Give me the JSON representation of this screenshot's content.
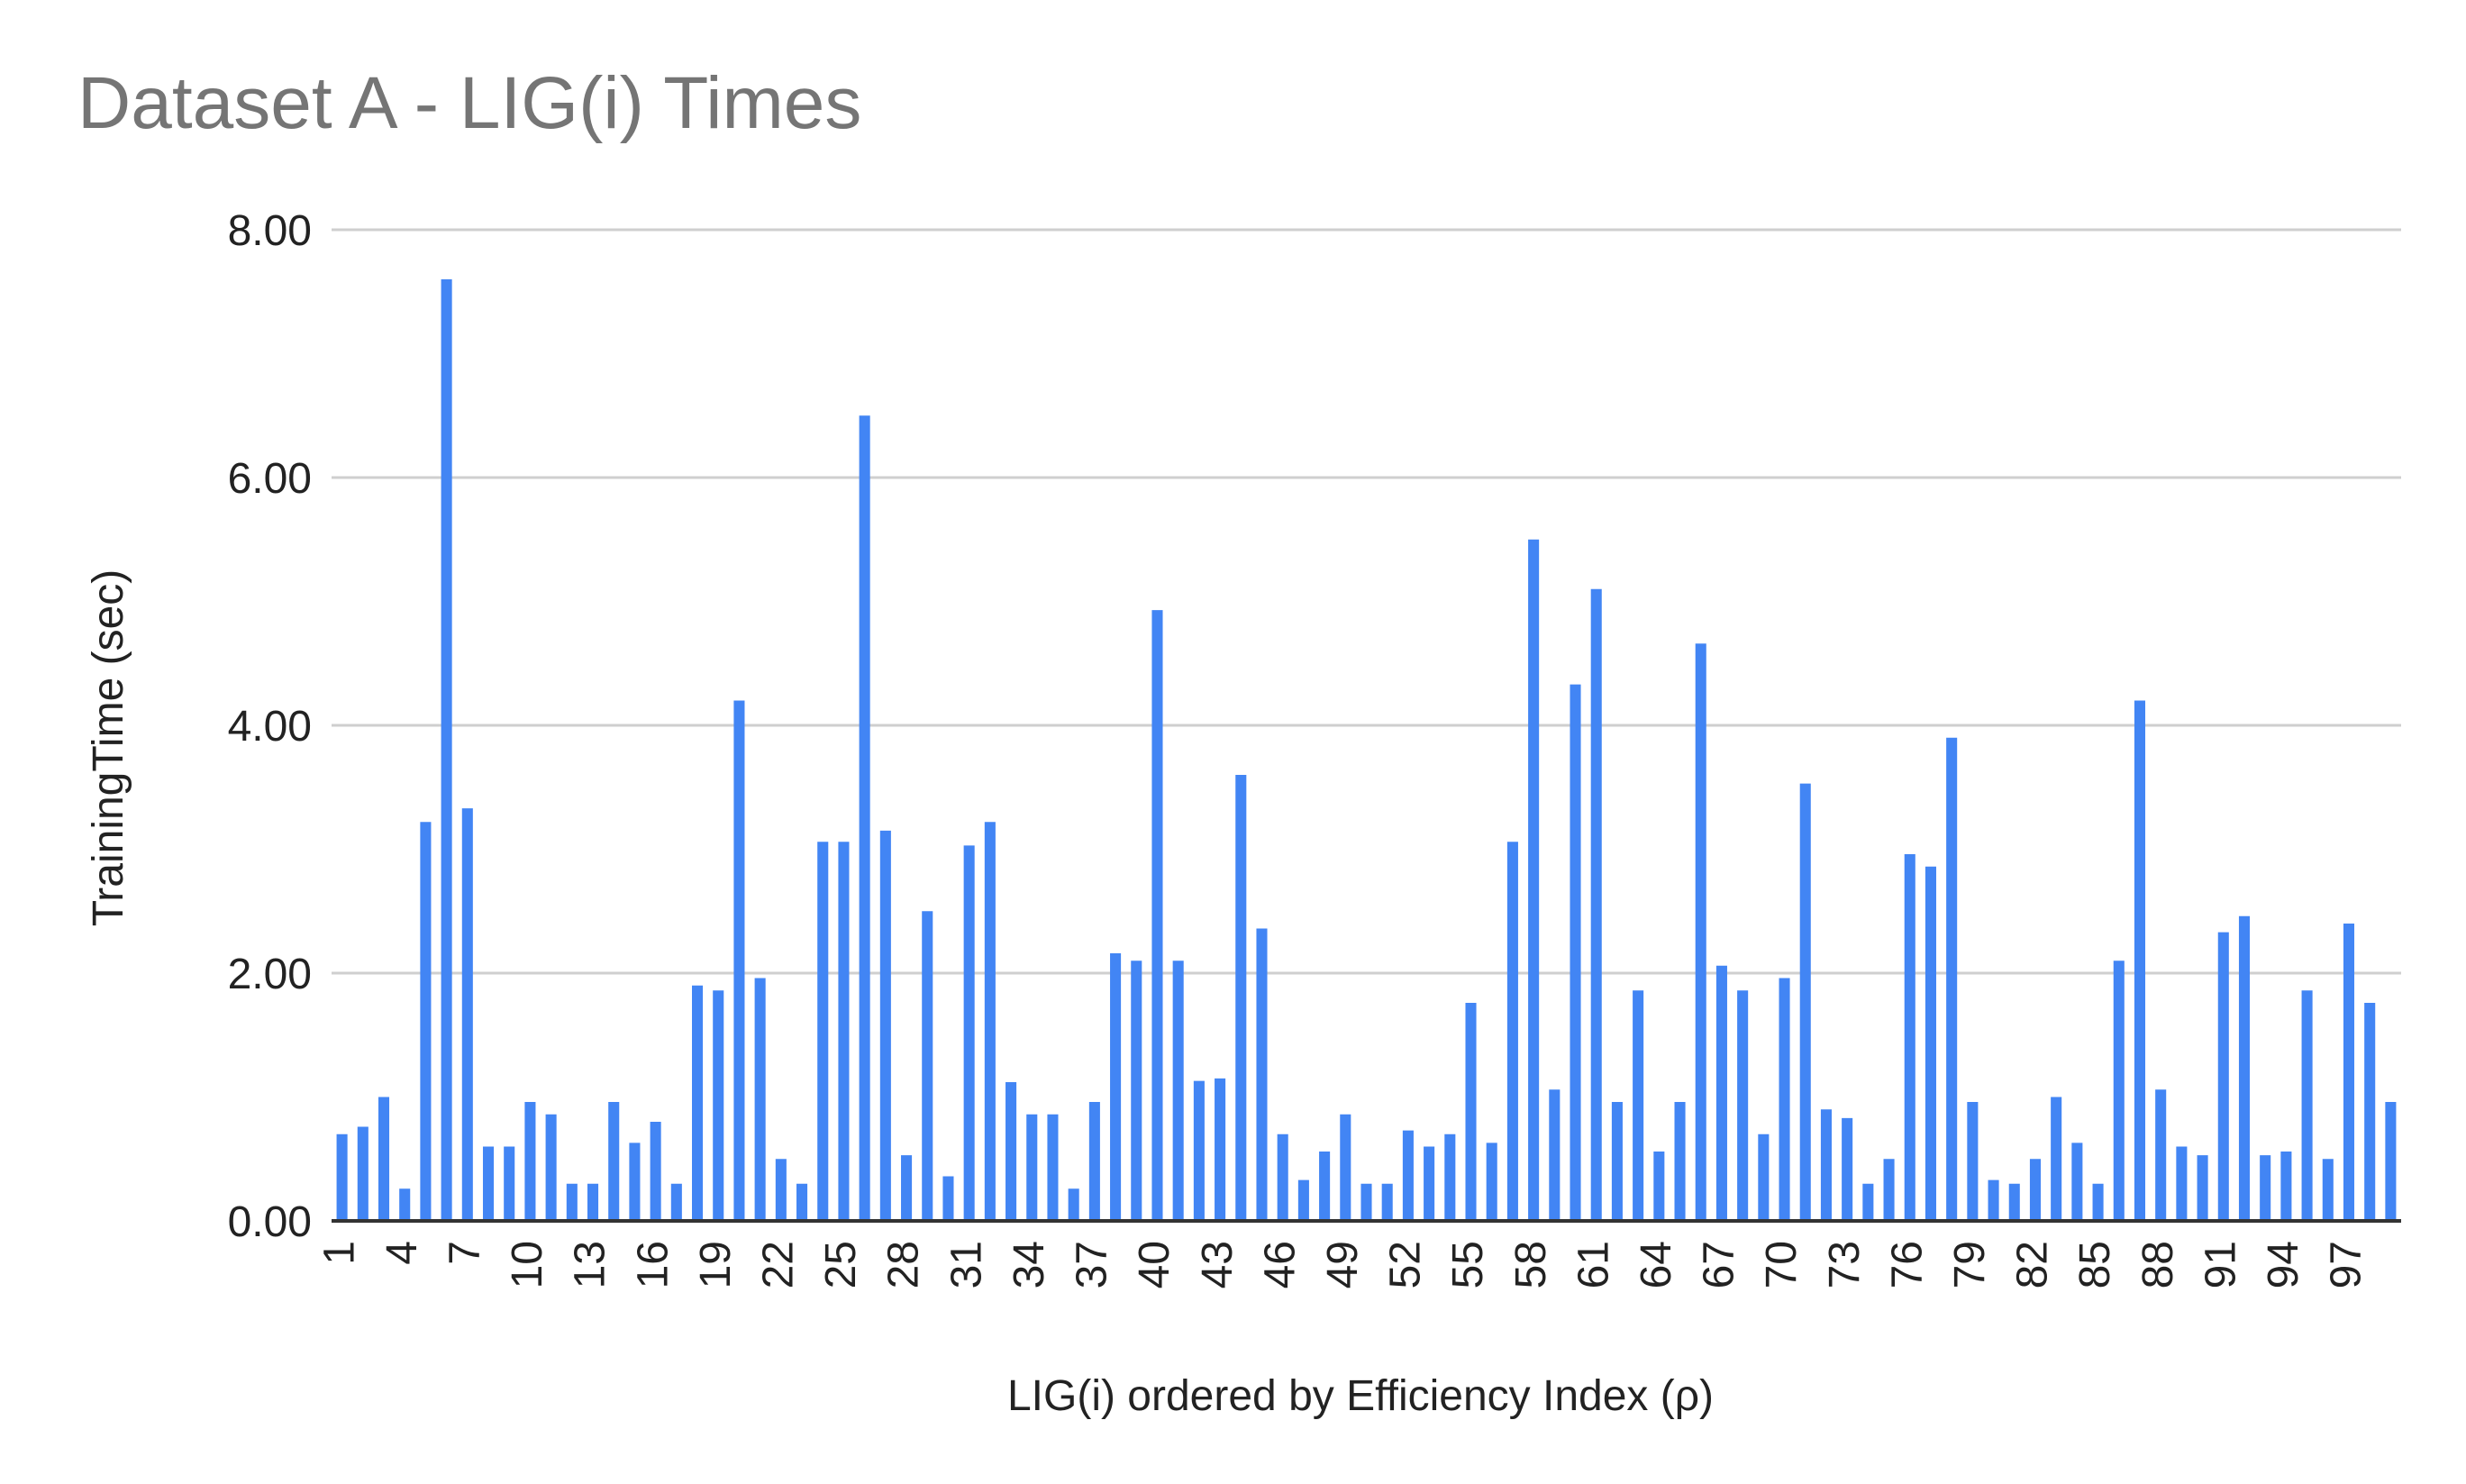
{
  "colors": {
    "bar": "#4285f4",
    "title": "#757575",
    "grid": "#cfcfcf",
    "text": "#222222"
  },
  "chart_data": {
    "type": "bar",
    "title": "Dataset A - LIG(i) Times",
    "xlabel": "LIG(i) ordered by Efficiency Index (ρ)",
    "ylabel": "TrainingTime (sec)",
    "ylim": [
      0,
      8
    ],
    "yticks": [
      "0.00",
      "2.00",
      "4.00",
      "6.00",
      "8.00"
    ],
    "grid": true,
    "legend": "none",
    "categories": [
      1,
      2,
      3,
      4,
      5,
      6,
      7,
      8,
      9,
      10,
      11,
      12,
      13,
      14,
      15,
      16,
      17,
      18,
      19,
      20,
      21,
      22,
      23,
      24,
      25,
      26,
      27,
      28,
      29,
      30,
      31,
      32,
      33,
      34,
      35,
      36,
      37,
      38,
      39,
      40,
      41,
      42,
      43,
      44,
      45,
      46,
      47,
      48,
      49,
      50,
      51,
      52,
      53,
      54,
      55,
      56,
      57,
      58,
      59,
      60,
      61,
      62,
      63,
      64,
      65,
      66,
      67,
      68,
      69,
      70,
      71,
      72,
      73,
      74,
      75,
      76,
      77,
      78,
      79,
      80,
      81,
      82,
      83,
      84,
      85,
      86,
      87,
      88,
      89,
      90,
      91,
      92,
      93,
      94,
      95,
      96,
      97,
      98,
      99
    ],
    "xticks_shown": [
      "1",
      "4",
      "7",
      "10",
      "13",
      "16",
      "19",
      "22",
      "25",
      "28",
      "31",
      "34",
      "37",
      "40",
      "43",
      "46",
      "49",
      "52",
      "55",
      "58",
      "61",
      "64",
      "67",
      "70",
      "73",
      "76",
      "79",
      "82",
      "85",
      "88",
      "91",
      "94",
      "97"
    ],
    "values": [
      0.7,
      0.76,
      1.0,
      0.26,
      3.22,
      7.6,
      3.33,
      0.6,
      0.6,
      0.96,
      0.86,
      0.3,
      0.3,
      0.96,
      0.63,
      0.8,
      0.3,
      1.9,
      1.86,
      4.2,
      1.96,
      0.5,
      0.3,
      3.06,
      3.06,
      6.5,
      3.15,
      0.53,
      2.5,
      0.36,
      3.03,
      3.22,
      1.12,
      0.86,
      0.86,
      0.26,
      0.96,
      2.16,
      2.1,
      4.93,
      2.1,
      1.13,
      1.15,
      3.6,
      2.36,
      0.7,
      0.33,
      0.56,
      0.86,
      0.3,
      0.3,
      0.73,
      0.6,
      0.7,
      1.76,
      0.63,
      3.06,
      5.5,
      1.06,
      4.33,
      5.1,
      0.96,
      1.86,
      0.56,
      0.96,
      4.66,
      2.06,
      1.86,
      0.7,
      1.96,
      3.53,
      0.9,
      0.83,
      0.3,
      0.5,
      2.96,
      2.86,
      3.9,
      0.96,
      0.33,
      0.3,
      0.5,
      1.0,
      0.63,
      0.3,
      2.1,
      4.2,
      1.06,
      0.6,
      0.53,
      2.33,
      2.46,
      0.53,
      0.56,
      1.86,
      0.5,
      2.4,
      1.76,
      0.96
    ]
  }
}
